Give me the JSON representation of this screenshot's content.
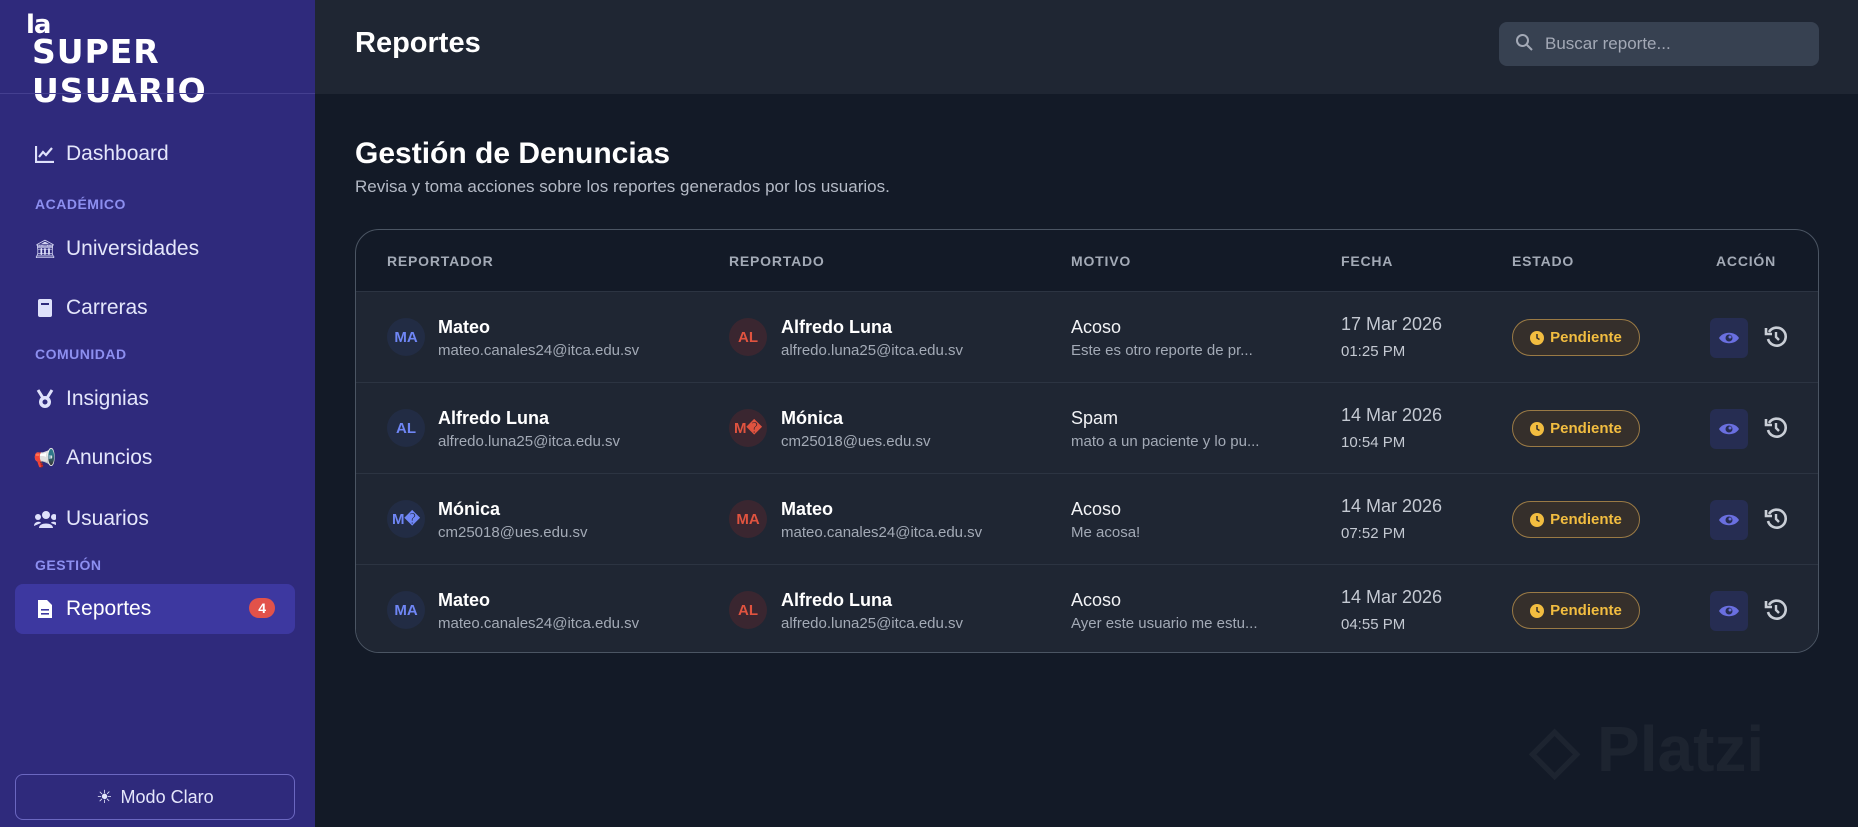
{
  "brand": {
    "logo_top": "la",
    "logo_main": "SUPER USUARIO"
  },
  "sidebar": {
    "items": [
      {
        "label": "Dashboard",
        "icon": "chart-line-icon"
      },
      {
        "label": "Universidades",
        "icon": "university-icon"
      },
      {
        "label": "Carreras",
        "icon": "book-icon"
      },
      {
        "label": "Insignias",
        "icon": "medal-icon"
      },
      {
        "label": "Anuncios",
        "icon": "megaphone-icon"
      },
      {
        "label": "Usuarios",
        "icon": "users-icon"
      },
      {
        "label": "Reportes",
        "icon": "file-icon",
        "badge": "4",
        "active": true
      }
    ],
    "sections": [
      "ACADÉMICO",
      "COMUNIDAD",
      "GESTIÓN"
    ],
    "mode_button": "Modo Claro"
  },
  "header": {
    "title": "Reportes",
    "search_placeholder": "Buscar reporte..."
  },
  "main": {
    "heading": "Gestión de Denuncias",
    "subtitle": "Revisa y toma acciones sobre los reportes generados por los usuarios."
  },
  "table": {
    "columns": [
      "REPORTADOR",
      "REPORTADO",
      "MOTIVO",
      "FECHA",
      "ESTADO",
      "ACCIÓN"
    ],
    "rows": [
      {
        "reporter": {
          "initials": "MA",
          "name": "Mateo",
          "email": "mateo.canales24@itca.edu.sv"
        },
        "reported": {
          "initials": "AL",
          "name": "Alfredo Luna",
          "email": "alfredo.luna25@itca.edu.sv"
        },
        "reason": "Acoso",
        "description": "Este es otro reporte de pr...",
        "date": "17 Mar 2026",
        "time": "01:25 PM",
        "status": "Pendiente"
      },
      {
        "reporter": {
          "initials": "AL",
          "name": "Alfredo Luna",
          "email": "alfredo.luna25@itca.edu.sv"
        },
        "reported": {
          "initials": "M�",
          "name": "Mónica",
          "email": "cm25018@ues.edu.sv"
        },
        "reason": "Spam",
        "description": "mato a un paciente y lo pu...",
        "date": "14 Mar 2026",
        "time": "10:54 PM",
        "status": "Pendiente"
      },
      {
        "reporter": {
          "initials": "M�",
          "name": "Mónica",
          "email": "cm25018@ues.edu.sv"
        },
        "reported": {
          "initials": "MA",
          "name": "Mateo",
          "email": "mateo.canales24@itca.edu.sv"
        },
        "reason": "Acoso",
        "description": "Me acosa!",
        "date": "14 Mar 2026",
        "time": "07:52 PM",
        "status": "Pendiente"
      },
      {
        "reporter": {
          "initials": "MA",
          "name": "Mateo",
          "email": "mateo.canales24@itca.edu.sv"
        },
        "reported": {
          "initials": "AL",
          "name": "Alfredo Luna",
          "email": "alfredo.luna25@itca.edu.sv"
        },
        "reason": "Acoso",
        "description": "Ayer este usuario me estu...",
        "date": "14 Mar 2026",
        "time": "04:55 PM",
        "status": "Pendiente"
      }
    ]
  },
  "watermark": "Platzi",
  "colors": {
    "sidebar": "#2f2a7c",
    "accent": "#6f86f5",
    "pending": "#f2bd40",
    "badge": "#e2524a"
  }
}
